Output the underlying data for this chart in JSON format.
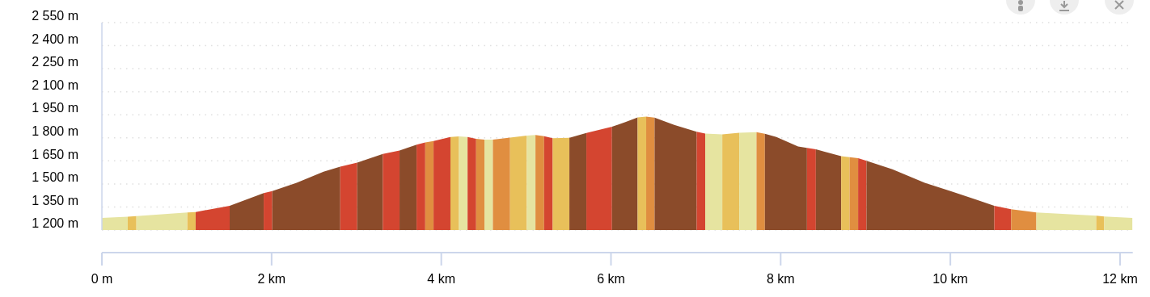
{
  "chart_data": {
    "type": "area",
    "xlim": [
      0,
      12.15
    ],
    "ylim": [
      1200,
      2550
    ],
    "xticks": [
      {
        "value": 0,
        "label": "0 m"
      },
      {
        "value": 2,
        "label": "2 km"
      },
      {
        "value": 4,
        "label": "4 km"
      },
      {
        "value": 6,
        "label": "6 km"
      },
      {
        "value": 8,
        "label": "8 km"
      },
      {
        "value": 10,
        "label": "10 km"
      },
      {
        "value": 12,
        "label": "12 km"
      }
    ],
    "yticks": [
      {
        "value": 1200,
        "label": "1 200 m"
      },
      {
        "value": 1350,
        "label": "1 350 m"
      },
      {
        "value": 1500,
        "label": "1 500 m"
      },
      {
        "value": 1650,
        "label": "1 650 m"
      },
      {
        "value": 1800,
        "label": "1 800 m"
      },
      {
        "value": 1950,
        "label": "1 950 m"
      },
      {
        "value": 2100,
        "label": "2 100 m"
      },
      {
        "value": 2250,
        "label": "2 250 m"
      },
      {
        "value": 2400,
        "label": "2 400 m"
      },
      {
        "value": 2550,
        "label": "2 550 m"
      }
    ],
    "grid": "y",
    "series": [
      {
        "color": "#e6e4a0",
        "x": [
          0,
          0.305
        ],
        "values": [
          1279,
          1287
        ]
      },
      {
        "color": "#e8c05a",
        "x": [
          0.305,
          0.407
        ],
        "values": [
          1287,
          1291
        ]
      },
      {
        "color": "#e6e4a0",
        "x": [
          0.407,
          1.007
        ],
        "values": [
          1291,
          1314
        ]
      },
      {
        "color": "#e8c05a",
        "x": [
          1.007,
          1.105
        ],
        "values": [
          1314,
          1317
        ]
      },
      {
        "color": "#d44530",
        "x": [
          1.105,
          1.506
        ],
        "values": [
          1317,
          1358
        ]
      },
      {
        "color": "#8b4b2a",
        "x": [
          1.506,
          1.907
        ],
        "values": [
          1358,
          1440
        ]
      },
      {
        "color": "#d44530",
        "x": [
          1.907,
          2.008
        ],
        "values": [
          1440,
          1454
        ]
      },
      {
        "color": "#8b4b2a",
        "x": [
          2.008,
          2.295,
          2.612,
          2.809
        ],
        "values": [
          1454,
          1507,
          1580,
          1612
        ]
      },
      {
        "color": "#d44530",
        "x": [
          2.809,
          3.009
        ],
        "values": [
          1612,
          1638
        ]
      },
      {
        "color": "#8b4b2a",
        "x": [
          3.009,
          3.311
        ],
        "values": [
          1638,
          1695
        ]
      },
      {
        "color": "#d44530",
        "x": [
          3.311,
          3.508
        ],
        "values": [
          1695,
          1717
        ]
      },
      {
        "color": "#8b4b2a",
        "x": [
          3.508,
          3.709
        ],
        "values": [
          1717,
          1756
        ]
      },
      {
        "color": "#d44530",
        "x": [
          3.709,
          3.811
        ],
        "values": [
          1756,
          1770
        ]
      },
      {
        "color": "#e08e40",
        "x": [
          3.811,
          3.909
        ],
        "values": [
          1770,
          1779
        ]
      },
      {
        "color": "#d44530",
        "x": [
          3.909,
          4.108
        ],
        "values": [
          1779,
          1805
        ]
      },
      {
        "color": "#e8c05a",
        "x": [
          4.108,
          4.209
        ],
        "values": [
          1805,
          1809
        ]
      },
      {
        "color": "#e6e4a0",
        "x": [
          4.209,
          4.31
        ],
        "values": [
          1809,
          1805
        ]
      },
      {
        "color": "#d44530",
        "x": [
          4.31,
          4.411
        ],
        "values": [
          1805,
          1793
        ]
      },
      {
        "color": "#e08e40",
        "x": [
          4.411,
          4.509
        ],
        "values": [
          1793,
          1788
        ]
      },
      {
        "color": "#e6e4a0",
        "x": [
          4.509,
          4.608
        ],
        "values": [
          1788,
          1788
        ]
      },
      {
        "color": "#e08e40",
        "x": [
          4.608,
          4.811
        ],
        "values": [
          1788,
          1802
        ]
      },
      {
        "color": "#e8c05a",
        "x": [
          4.811,
          5.008
        ],
        "values": [
          1802,
          1814
        ]
      },
      {
        "color": "#e6e4a0",
        "x": [
          5.008,
          5.11
        ],
        "values": [
          1814,
          1818
        ]
      },
      {
        "color": "#e08e40",
        "x": [
          5.11,
          5.212
        ],
        "values": [
          1818,
          1810
        ]
      },
      {
        "color": "#d44530",
        "x": [
          5.212,
          5.313
        ],
        "values": [
          1810,
          1797
        ]
      },
      {
        "color": "#e8c05a",
        "x": [
          5.313,
          5.51
        ],
        "values": [
          1797,
          1800
        ]
      },
      {
        "color": "#8b4b2a",
        "x": [
          5.51,
          5.71
        ],
        "values": [
          1800,
          1832
        ]
      },
      {
        "color": "#d44530",
        "x": [
          5.71,
          6.012
        ],
        "values": [
          1832,
          1872
        ]
      },
      {
        "color": "#8b4b2a",
        "x": [
          6.012,
          6.17,
          6.314
        ],
        "values": [
          1872,
          1902,
          1933
        ]
      },
      {
        "color": "#e8c05a",
        "x": [
          6.314,
          6.415
        ],
        "values": [
          1933,
          1938
        ]
      },
      {
        "color": "#e08e40",
        "x": [
          6.415,
          6.514
        ],
        "values": [
          1938,
          1932
        ]
      },
      {
        "color": "#8b4b2a",
        "x": [
          6.514,
          6.745,
          7.01
        ],
        "values": [
          1932,
          1884,
          1840
        ]
      },
      {
        "color": "#d44530",
        "x": [
          7.01,
          7.111
        ],
        "values": [
          1840,
          1828
        ]
      },
      {
        "color": "#e6e4a0",
        "x": [
          7.111,
          7.312
        ],
        "values": [
          1828,
          1823
        ]
      },
      {
        "color": "#e8c05a",
        "x": [
          7.312,
          7.512
        ],
        "values": [
          1823,
          1833
        ]
      },
      {
        "color": "#e6e4a0",
        "x": [
          7.512,
          7.715
        ],
        "values": [
          1833,
          1837
        ]
      },
      {
        "color": "#e08e40",
        "x": [
          7.715,
          7.814
        ],
        "values": [
          1837,
          1826
        ]
      },
      {
        "color": "#8b4b2a",
        "x": [
          7.814,
          7.95,
          8.205,
          8.31
        ],
        "values": [
          1826,
          1805,
          1744,
          1735
        ]
      },
      {
        "color": "#d44530",
        "x": [
          8.31,
          8.415
        ],
        "values": [
          1735,
          1725
        ]
      },
      {
        "color": "#8b4b2a",
        "x": [
          8.415,
          8.713
        ],
        "values": [
          1725,
          1681
        ]
      },
      {
        "color": "#e8c05a",
        "x": [
          8.713,
          8.812
        ],
        "values": [
          1681,
          1674
        ]
      },
      {
        "color": "#e08e40",
        "x": [
          8.812,
          8.913
        ],
        "values": [
          1674,
          1667
        ]
      },
      {
        "color": "#d44530",
        "x": [
          8.913,
          9.012
        ],
        "values": [
          1667,
          1651
        ]
      },
      {
        "color": "#8b4b2a",
        "x": [
          9.012,
          9.317,
          9.698,
          10.016,
          10.302,
          10.518
        ],
        "values": [
          1651,
          1595,
          1507,
          1451,
          1398,
          1358
        ]
      },
      {
        "color": "#d44530",
        "x": [
          10.518,
          10.716
        ],
        "values": [
          1358,
          1335
        ]
      },
      {
        "color": "#e08e40",
        "x": [
          10.716,
          11.014
        ],
        "values": [
          1335,
          1314
        ]
      },
      {
        "color": "#e6e4a0",
        "x": [
          11.014,
          11.719
        ],
        "values": [
          1314,
          1293
        ]
      },
      {
        "color": "#e8c05a",
        "x": [
          11.719,
          11.814
        ],
        "values": [
          1293,
          1288
        ]
      },
      {
        "color": "#e6e4a0",
        "x": [
          11.814,
          12.145
        ],
        "values": [
          1288,
          1279
        ]
      }
    ]
  }
}
